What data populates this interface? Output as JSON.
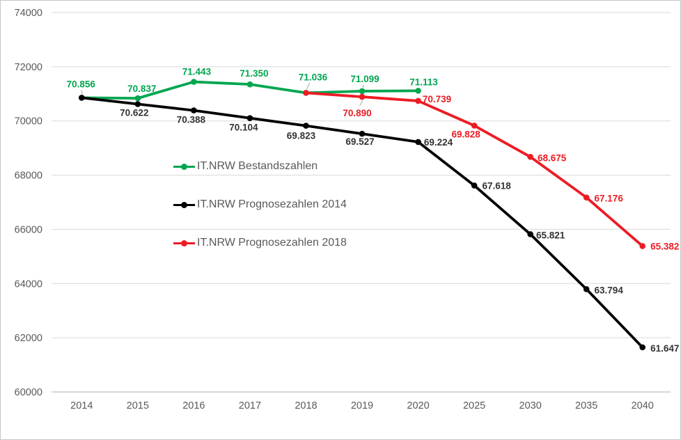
{
  "figure": {
    "background": "#ffffff",
    "border_color": "#c6c6c6"
  },
  "chart_data": {
    "type": "line",
    "title": "",
    "xlabel": "",
    "ylabel": "",
    "x_categories": [
      "2014",
      "2015",
      "2016",
      "2017",
      "2018",
      "2019",
      "2020",
      "2025",
      "2030",
      "2035",
      "2040"
    ],
    "y_axis": {
      "min": 60000,
      "max": 74000,
      "tick_step": 2000,
      "tick_labels": [
        "60000",
        "62000",
        "64000",
        "66000",
        "68000",
        "70000",
        "72000",
        "74000"
      ]
    },
    "grid": true,
    "gridline_color": "#d9d9d9",
    "axis_line_color": "#bfbfbf",
    "axis_text_color": "#595959",
    "leader_line_color": "#a6a6a6",
    "legend": {
      "position": "inside-left",
      "items": [
        "IT.NRW Bestandszahlen",
        "IT.NRW Prognosezahlen 2014",
        "IT.NRW Prognosezahlen 2018"
      ]
    },
    "series": [
      {
        "name": "IT.NRW Bestandszahlen",
        "color": "#00a650",
        "points": [
          {
            "x": "2014",
            "value": 70856,
            "label": "70.856",
            "dx": -1,
            "dy": -20,
            "leader": true
          },
          {
            "x": "2015",
            "value": 70837,
            "label": "70.837",
            "dx": 6,
            "dy": -14
          },
          {
            "x": "2016",
            "value": 71443,
            "label": "71.443",
            "dx": 4,
            "dy": -15
          },
          {
            "x": "2017",
            "value": 71350,
            "label": "71.350",
            "dx": 6,
            "dy": -16
          },
          {
            "x": "2018",
            "value": 71036,
            "label": "71.036",
            "dx": 10,
            "dy": -23,
            "leader": true
          },
          {
            "x": "2019",
            "value": 71099,
            "label": "71.099",
            "dx": 4,
            "dy": -18,
            "leader": true
          },
          {
            "x": "2020",
            "value": 71113,
            "label": "71.113",
            "dx": 8,
            "dy": -13
          }
        ]
      },
      {
        "name": "IT.NRW Prognosezahlen 2014",
        "color": "#000000",
        "label_color": "#333333",
        "points": [
          {
            "x": "2014",
            "value": 70856
          },
          {
            "x": "2015",
            "value": 70622,
            "label": "70.622",
            "dx": -5,
            "dy": 12
          },
          {
            "x": "2016",
            "value": 70388,
            "label": "70.388",
            "dx": -4,
            "dy": 13
          },
          {
            "x": "2017",
            "value": 70104,
            "label": "70.104",
            "dx": -9,
            "dy": 13
          },
          {
            "x": "2018",
            "value": 69823,
            "label": "69.823",
            "dx": -7,
            "dy": 14
          },
          {
            "x": "2019",
            "value": 69527,
            "label": "69.527",
            "dx": -3,
            "dy": 11
          },
          {
            "x": "2020",
            "value": 69224,
            "label": "69.224",
            "dx": 29,
            "dy": 0
          },
          {
            "x": "2025",
            "value": 67618,
            "label": "67.618",
            "dx": 32,
            "dy": 0
          },
          {
            "x": "2030",
            "value": 65821,
            "label": "65.821",
            "dx": 29,
            "dy": 1
          },
          {
            "x": "2035",
            "value": 63794,
            "label": "63.794",
            "dx": 32,
            "dy": 1
          },
          {
            "x": "2040",
            "value": 61647,
            "label": "61.647",
            "dx": 32,
            "dy": 1
          }
        ]
      },
      {
        "name": "IT.NRW Prognosezahlen 2018",
        "color": "#ed1c24",
        "points": [
          {
            "x": "2018",
            "value": 71036
          },
          {
            "x": "2019",
            "value": 70890,
            "label": "70.890",
            "dx": -7,
            "dy": 23,
            "leader": true
          },
          {
            "x": "2020",
            "value": 70739,
            "label": "70.739",
            "dx": 27,
            "dy": -3
          },
          {
            "x": "2025",
            "value": 69828,
            "label": "69.828",
            "dx": -12,
            "dy": 12
          },
          {
            "x": "2030",
            "value": 68675,
            "label": "68.675",
            "dx": 31,
            "dy": 1
          },
          {
            "x": "2035",
            "value": 67176,
            "label": "67.176",
            "dx": 32,
            "dy": 1
          },
          {
            "x": "2040",
            "value": 65382,
            "label": "65.382",
            "dx": 32,
            "dy": 0
          }
        ]
      }
    ]
  }
}
